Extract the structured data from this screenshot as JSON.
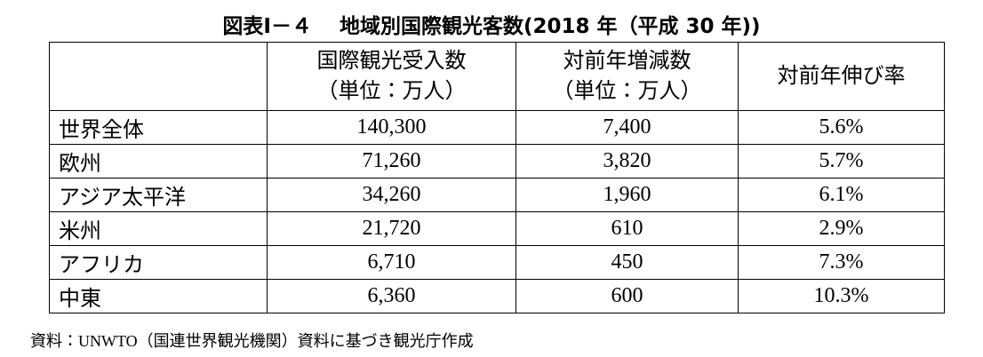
{
  "title": "図表Ⅰ－４　 地域別国際観光客数(2018 年（平成 30 年))",
  "table": {
    "header": [
      [
        ""
      ],
      [
        "国際観光受入数",
        "（単位：万人）"
      ],
      [
        "対前年増減数",
        "（単位：万人）"
      ],
      [
        "対前年伸び率"
      ]
    ],
    "rows": [
      [
        "世界全体",
        "140,300",
        "7,400",
        "5.6%"
      ],
      [
        "欧州",
        "71,260",
        "3,820",
        "5.7%"
      ],
      [
        "アジア太平洋",
        "34,260",
        "1,960",
        "6.1%"
      ],
      [
        "米州",
        "21,720",
        "610",
        "2.9%"
      ],
      [
        "アフリカ",
        "6,710",
        "450",
        "7.3%"
      ],
      [
        "中東",
        "6,360",
        "600",
        "10.3%"
      ]
    ]
  },
  "source": "資料：UNWTO（国連世界観光機関）資料に基づき観光庁作成"
}
